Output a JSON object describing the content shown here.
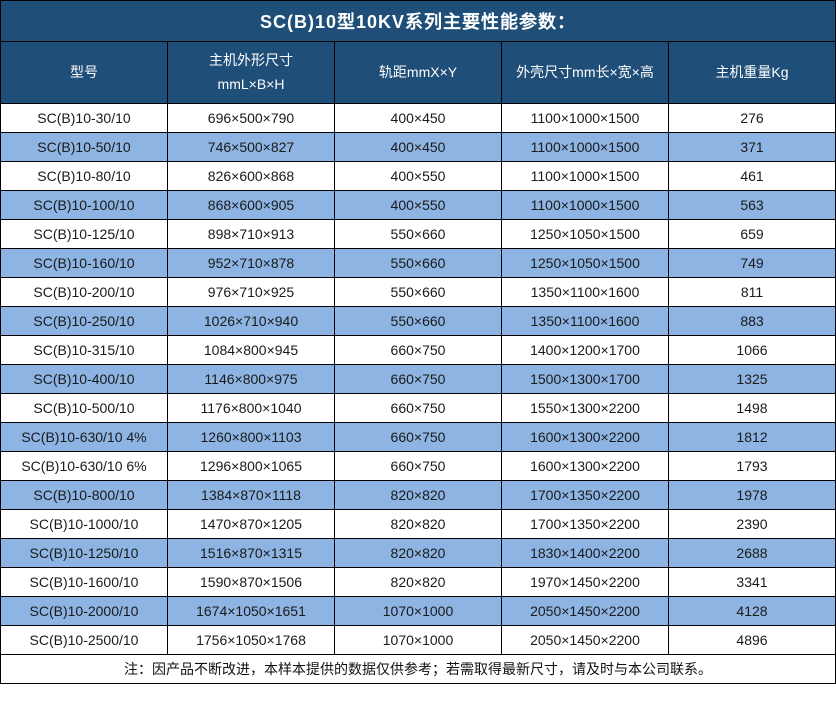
{
  "title": "SC(B)10型10KV系列主要性能参数：",
  "header": {
    "col_model": "型号",
    "col_host_dim_line1": "主机外形尺寸",
    "col_host_dim_line2": "mmL×B×H",
    "col_rail_gauge": "轨距mmX×Y",
    "col_shell_dim": "外壳尺寸mm长×宽×高",
    "col_weight": "主机重量Kg"
  },
  "note": "注：因产品不断改进，本样本提供的数据仅供参考；若需取得最新尺寸，请及时与本公司联系。",
  "colors": {
    "title_header_bg": "#1F4E79",
    "band_row_bg": "#8DB4E2",
    "plain_row_bg": "#FFFFFF",
    "border": "#000000",
    "header_text": "#FFFFFF",
    "body_text": "#1A1A1A"
  },
  "chart_data": {
    "type": "table",
    "title": "SC(B)10型10KV系列主要性能参数：",
    "columns": [
      "型号",
      "主机外形尺寸 mmL×B×H",
      "轨距mmX×Y",
      "外壳尺寸mm长×宽×高",
      "主机重量Kg"
    ],
    "rows": [
      [
        "SC(B)10-30/10",
        "696×500×790",
        "400×450",
        "1100×1000×1500",
        "276"
      ],
      [
        "SC(B)10-50/10",
        "746×500×827",
        "400×450",
        "1100×1000×1500",
        "371"
      ],
      [
        "SC(B)10-80/10",
        "826×600×868",
        "400×550",
        "1100×1000×1500",
        "461"
      ],
      [
        "SC(B)10-100/10",
        "868×600×905",
        "400×550",
        "1100×1000×1500",
        "563"
      ],
      [
        "SC(B)10-125/10",
        "898×710×913",
        "550×660",
        "1250×1050×1500",
        "659"
      ],
      [
        "SC(B)10-160/10",
        "952×710×878",
        "550×660",
        "1250×1050×1500",
        "749"
      ],
      [
        "SC(B)10-200/10",
        "976×710×925",
        "550×660",
        "1350×1100×1600",
        "811"
      ],
      [
        "SC(B)10-250/10",
        "1026×710×940",
        "550×660",
        "1350×1100×1600",
        "883"
      ],
      [
        "SC(B)10-315/10",
        "1084×800×945",
        "660×750",
        "1400×1200×1700",
        "1066"
      ],
      [
        "SC(B)10-400/10",
        "1146×800×975",
        "660×750",
        "1500×1300×1700",
        "1325"
      ],
      [
        "SC(B)10-500/10",
        "1176×800×1040",
        "660×750",
        "1550×1300×2200",
        "1498"
      ],
      [
        "SC(B)10-630/10 4%",
        "1260×800×1103",
        "660×750",
        "1600×1300×2200",
        "1812"
      ],
      [
        "SC(B)10-630/10 6%",
        "1296×800×1065",
        "660×750",
        "1600×1300×2200",
        "1793"
      ],
      [
        "SC(B)10-800/10",
        "1384×870×1118",
        "820×820",
        "1700×1350×2200",
        "1978"
      ],
      [
        "SC(B)10-1000/10",
        "1470×870×1205",
        "820×820",
        "1700×1350×2200",
        "2390"
      ],
      [
        "SC(B)10-1250/10",
        "1516×870×1315",
        "820×820",
        "1830×1400×2200",
        "2688"
      ],
      [
        "SC(B)10-1600/10",
        "1590×870×1506",
        "820×820",
        "1970×1450×2200",
        "3341"
      ],
      [
        "SC(B)10-2000/10",
        "1674×1050×1651",
        "1070×1000",
        "2050×1450×2200",
        "4128"
      ],
      [
        "SC(B)10-2500/10",
        "1756×1050×1768",
        "1070×1000",
        "2050×1450×2200",
        "4896"
      ]
    ]
  }
}
